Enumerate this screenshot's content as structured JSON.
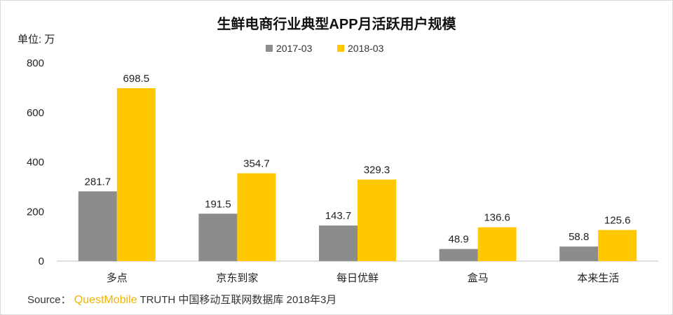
{
  "chart_data": {
    "type": "bar",
    "title": "生鲜电商行业典型APP月活跃用户规模",
    "unit_label": "单位: 万",
    "categories": [
      "多点",
      "京东到家",
      "每日优鲜",
      "盒马",
      "本来生活"
    ],
    "series": [
      {
        "name": "2017-03",
        "color": "#8c8c8c",
        "values": [
          281.7,
          191.5,
          143.7,
          48.9,
          58.8
        ]
      },
      {
        "name": "2018-03",
        "color": "#ffc800",
        "values": [
          698.5,
          354.7,
          329.3,
          136.6,
          125.6
        ]
      }
    ],
    "value_labels": [
      [
        "281.7",
        "191.5",
        "143.7",
        "48.9",
        "58.8"
      ],
      [
        "698.5",
        "354.7",
        "329.3",
        "136.6",
        "125.6"
      ]
    ],
    "ylim": [
      0,
      800
    ],
    "yticks": [
      0,
      200,
      400,
      600,
      800
    ],
    "ytick_labels": [
      "0",
      "200",
      "400",
      "600",
      "800"
    ],
    "legend_position": "top-center",
    "grid": false
  },
  "source": {
    "prefix": "Source：",
    "brand": "QuestMobile",
    "text": " TRUTH 中国移动互联网数据库 2018年3月"
  }
}
